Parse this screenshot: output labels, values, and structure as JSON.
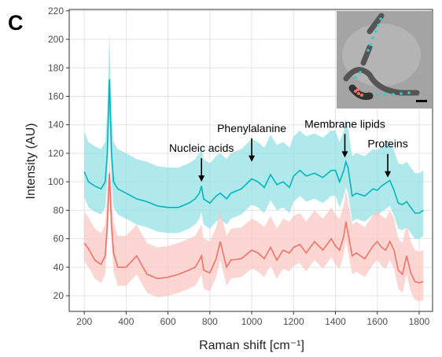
{
  "chart_data": {
    "type": "ribbon-line",
    "panel_label": "C",
    "x_label": "Raman shift [cm⁻¹]",
    "y_label": "Intensity (AU)",
    "xlim": [
      128,
      1864
    ],
    "ylim": [
      9,
      221
    ],
    "xticks": [
      200,
      400,
      600,
      800,
      1000,
      1200,
      1400,
      1600,
      1800
    ],
    "yticks": [
      20,
      40,
      60,
      80,
      100,
      120,
      140,
      160,
      180,
      200,
      220
    ],
    "grid": true,
    "x": [
      200,
      220,
      250,
      280,
      300,
      310,
      320,
      330,
      340,
      360,
      400,
      450,
      500,
      550,
      600,
      650,
      700,
      730,
      750,
      760,
      770,
      800,
      830,
      850,
      880,
      900,
      950,
      1000,
      1030,
      1060,
      1090,
      1120,
      1150,
      1180,
      1200,
      1230,
      1260,
      1300,
      1340,
      1380,
      1400,
      1420,
      1440,
      1450,
      1460,
      1480,
      1500,
      1540,
      1580,
      1600,
      1620,
      1640,
      1660,
      1680,
      1700,
      1720,
      1740,
      1760,
      1780,
      1800,
      1820
    ],
    "series": [
      {
        "color": "#00b5bd",
        "band_color": "#8fe0e3",
        "values": [
          107,
          100,
          97,
          95,
          100,
          120,
          172,
          120,
          100,
          95,
          92,
          88,
          86,
          83,
          82,
          82,
          85,
          88,
          92,
          97,
          88,
          85,
          90,
          92,
          88,
          92,
          95,
          102,
          100,
          96,
          105,
          98,
          100,
          96,
          104,
          108,
          104,
          106,
          103,
          108,
          108,
          100,
          108,
          114,
          110,
          90,
          92,
          90,
          95,
          94,
          97,
          99,
          101,
          94,
          85,
          84,
          86,
          82,
          78,
          78,
          80
        ],
        "upper": [
          135,
          128,
          125,
          123,
          128,
          150,
          205,
          150,
          128,
          123,
          120,
          116,
          114,
          111,
          110,
          110,
          113,
          116,
          120,
          125,
          116,
          113,
          118,
          120,
          116,
          120,
          123,
          130,
          128,
          124,
          133,
          126,
          128,
          124,
          132,
          136,
          132,
          134,
          131,
          136,
          136,
          128,
          136,
          145,
          138,
          118,
          120,
          118,
          123,
          122,
          125,
          127,
          129,
          122,
          113,
          112,
          114,
          110,
          106,
          106,
          108
        ],
        "lower": [
          89,
          82,
          79,
          77,
          82,
          100,
          140,
          100,
          82,
          77,
          74,
          70,
          68,
          65,
          64,
          64,
          67,
          70,
          74,
          79,
          70,
          67,
          72,
          74,
          70,
          74,
          77,
          84,
          82,
          78,
          87,
          80,
          82,
          78,
          86,
          90,
          86,
          88,
          85,
          90,
          90,
          82,
          90,
          96,
          92,
          72,
          74,
          72,
          77,
          76,
          79,
          81,
          83,
          76,
          67,
          66,
          68,
          64,
          60,
          60,
          62
        ]
      },
      {
        "color": "#f07167",
        "band_color": "#f9c4c0",
        "values": [
          57,
          53,
          45,
          42,
          48,
          70,
          106,
          70,
          50,
          40,
          40,
          48,
          35,
          32,
          33,
          35,
          38,
          40,
          45,
          48,
          38,
          36,
          46,
          58,
          40,
          45,
          46,
          52,
          50,
          46,
          54,
          45,
          52,
          50,
          54,
          56,
          50,
          58,
          52,
          60,
          55,
          52,
          62,
          72,
          64,
          48,
          50,
          46,
          55,
          58,
          54,
          52,
          58,
          52,
          38,
          35,
          48,
          36,
          30,
          29,
          30
        ],
        "upper": [
          79,
          75,
          67,
          64,
          70,
          92,
          120,
          92,
          72,
          62,
          62,
          70,
          57,
          54,
          55,
          57,
          60,
          62,
          67,
          70,
          60,
          58,
          68,
          80,
          62,
          67,
          68,
          74,
          72,
          68,
          76,
          67,
          74,
          72,
          76,
          78,
          72,
          80,
          74,
          82,
          77,
          74,
          84,
          94,
          86,
          70,
          72,
          68,
          77,
          80,
          76,
          74,
          80,
          74,
          60,
          57,
          70,
          58,
          52,
          51,
          52
        ],
        "lower": [
          44,
          40,
          32,
          29,
          35,
          57,
          85,
          57,
          37,
          27,
          27,
          35,
          22,
          19,
          20,
          22,
          25,
          27,
          32,
          35,
          25,
          23,
          33,
          45,
          27,
          32,
          33,
          39,
          37,
          33,
          41,
          32,
          39,
          37,
          41,
          43,
          37,
          45,
          39,
          47,
          42,
          39,
          49,
          59,
          51,
          35,
          37,
          33,
          42,
          45,
          41,
          39,
          45,
          39,
          25,
          22,
          35,
          23,
          17,
          16,
          17
        ]
      }
    ],
    "annotations": [
      {
        "text": "Nucleic acids",
        "x": 760,
        "y": 100
      },
      {
        "text": "Phenylalanine",
        "x": 1000,
        "y": 114
      },
      {
        "text": "Membrane lipids",
        "x": 1445,
        "y": 117
      },
      {
        "text": "Proteins",
        "x": 1650,
        "y": 103
      }
    ]
  }
}
